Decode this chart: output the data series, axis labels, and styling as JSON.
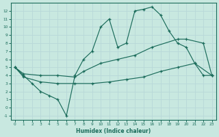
{
  "xlabel": "Humidex (Indice chaleur)",
  "ylabel": "",
  "xlim": [
    -0.5,
    23.5
  ],
  "ylim": [
    -1.5,
    13
  ],
  "xticks": [
    0,
    1,
    2,
    3,
    4,
    5,
    6,
    7,
    8,
    9,
    10,
    11,
    12,
    13,
    14,
    15,
    16,
    17,
    18,
    19,
    20,
    21,
    22,
    23
  ],
  "yticks": [
    -1,
    0,
    1,
    2,
    3,
    4,
    5,
    6,
    7,
    8,
    9,
    10,
    11,
    12
  ],
  "bg_color": "#c8e8e0",
  "grid_color": "#aacccc",
  "line_color": "#1a6b5a",
  "line1_x": [
    0,
    1,
    2,
    3,
    4,
    5,
    6,
    7,
    8,
    9,
    10,
    11,
    12,
    13,
    14,
    15,
    16,
    17,
    18,
    19,
    20,
    21,
    22,
    23
  ],
  "line1_y": [
    5,
    4,
    3,
    2,
    1.5,
    1,
    -1,
    4,
    6,
    7,
    10,
    11,
    7.5,
    8,
    12,
    12.2,
    12.5,
    11.5,
    9.5,
    8,
    7.5,
    5.5,
    4,
    4
  ],
  "line2_x": [
    0,
    1,
    3,
    5,
    7,
    8,
    10,
    12,
    14,
    16,
    19,
    20,
    22,
    23
  ],
  "line2_y": [
    5,
    4.2,
    4.0,
    4.0,
    3.8,
    4.5,
    5.5,
    6.0,
    6.5,
    7.5,
    8.5,
    8.5,
    8.0,
    4
  ],
  "line3_x": [
    0,
    1,
    3,
    5,
    7,
    9,
    11,
    13,
    15,
    17,
    19,
    21,
    23
  ],
  "line3_y": [
    5,
    3.8,
    3.2,
    3.0,
    3.0,
    3.0,
    3.2,
    3.5,
    3.8,
    4.5,
    5.0,
    5.5,
    4
  ]
}
